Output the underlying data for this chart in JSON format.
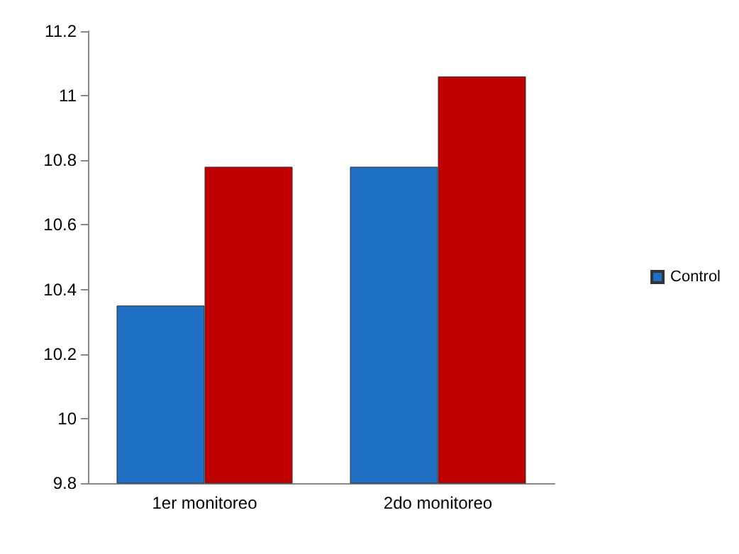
{
  "chart_data": {
    "type": "bar",
    "categories": [
      "1er monitoreo",
      "2do monitoreo"
    ],
    "series": [
      {
        "name": "Control",
        "color": "#1f6fc4",
        "values": [
          10.35,
          10.78
        ]
      },
      {
        "color": "#c00000",
        "values": [
          10.78,
          11.06
        ]
      }
    ],
    "ylim": [
      9.8,
      11.2
    ],
    "yticks": [
      9.8,
      10,
      10.2,
      10.4,
      10.6,
      10.8,
      11,
      11.2
    ],
    "grid": false,
    "legend": "right"
  }
}
